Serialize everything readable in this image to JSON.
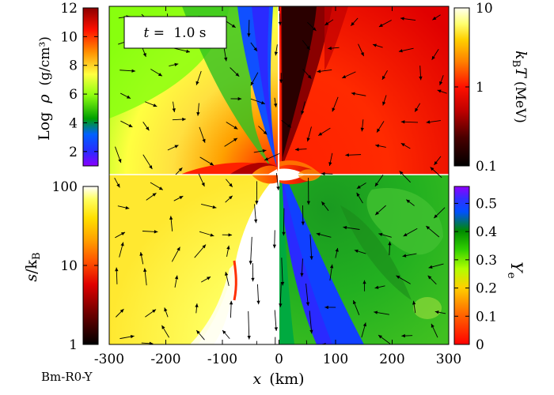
{
  "figure": {
    "time_label": "1.0 s",
    "time_prefix": "t =",
    "model_label": "Bm-R0-Y",
    "x_axis": {
      "label_var": "x",
      "label_unit": "(km)",
      "ticks": [
        "-300",
        "-200",
        "-100",
        "0",
        "100",
        "200",
        "300"
      ],
      "tick_values": [
        -300,
        -200,
        -100,
        0,
        100,
        200,
        300
      ],
      "range": [
        -300,
        300
      ]
    },
    "quadrants": {
      "top_left": "Log density",
      "top_right": "temperature",
      "bottom_left": "entropy",
      "bottom_right": "electron fraction"
    }
  },
  "colorbars": {
    "density": {
      "label_prefix": "Log",
      "label_var": "ρ",
      "label_unit": "(g/cm³)",
      "ticks": [
        "12",
        "10",
        "8",
        "6",
        "4",
        "2"
      ],
      "tick_values": [
        12,
        10,
        8,
        6,
        4,
        2
      ],
      "range": [
        1,
        12
      ],
      "colors": [
        "#ff00ff",
        "#3030ff",
        "#00a000",
        "#80ff00",
        "#ffff30",
        "#ff8000",
        "#ff0000",
        "#8b0000"
      ]
    },
    "temperature": {
      "label": "kBT (MeV)",
      "label_var": "k",
      "label_sub": "B",
      "label_var2": "T",
      "label_unit": "(MeV)",
      "ticks": [
        "10",
        "1",
        "0.1"
      ],
      "tick_values": [
        10,
        1,
        0.1
      ],
      "scale": "log",
      "range": [
        0.1,
        10
      ],
      "colors": [
        "#000000",
        "#4a0000",
        "#b00000",
        "#ff0000",
        "#ff8000",
        "#ffd000",
        "#ffff60",
        "#ffffe0"
      ]
    },
    "entropy": {
      "label_var": "s",
      "label_div": "/k",
      "label_sub": "B",
      "ticks": [
        "100",
        "10",
        "1"
      ],
      "tick_values": [
        100,
        10,
        1
      ],
      "scale": "log",
      "range": [
        1,
        100
      ],
      "colors": [
        "#000000",
        "#600000",
        "#d00000",
        "#ff4000",
        "#ff9000",
        "#ffd000",
        "#ffff40",
        "#ffffff"
      ]
    },
    "ye": {
      "label_var": "Y",
      "label_sub": "e",
      "ticks": [
        "0.5",
        "0.4",
        "0.3",
        "0.2",
        "0.1",
        "0"
      ],
      "tick_values": [
        0.5,
        0.4,
        0.3,
        0.2,
        0.1,
        0
      ],
      "range": [
        0,
        0.56
      ],
      "colors": [
        "#ff0000",
        "#ff6000",
        "#ffb000",
        "#ffff00",
        "#80ff00",
        "#00c000",
        "#008000",
        "#2020ff",
        "#8000ff"
      ]
    }
  }
}
